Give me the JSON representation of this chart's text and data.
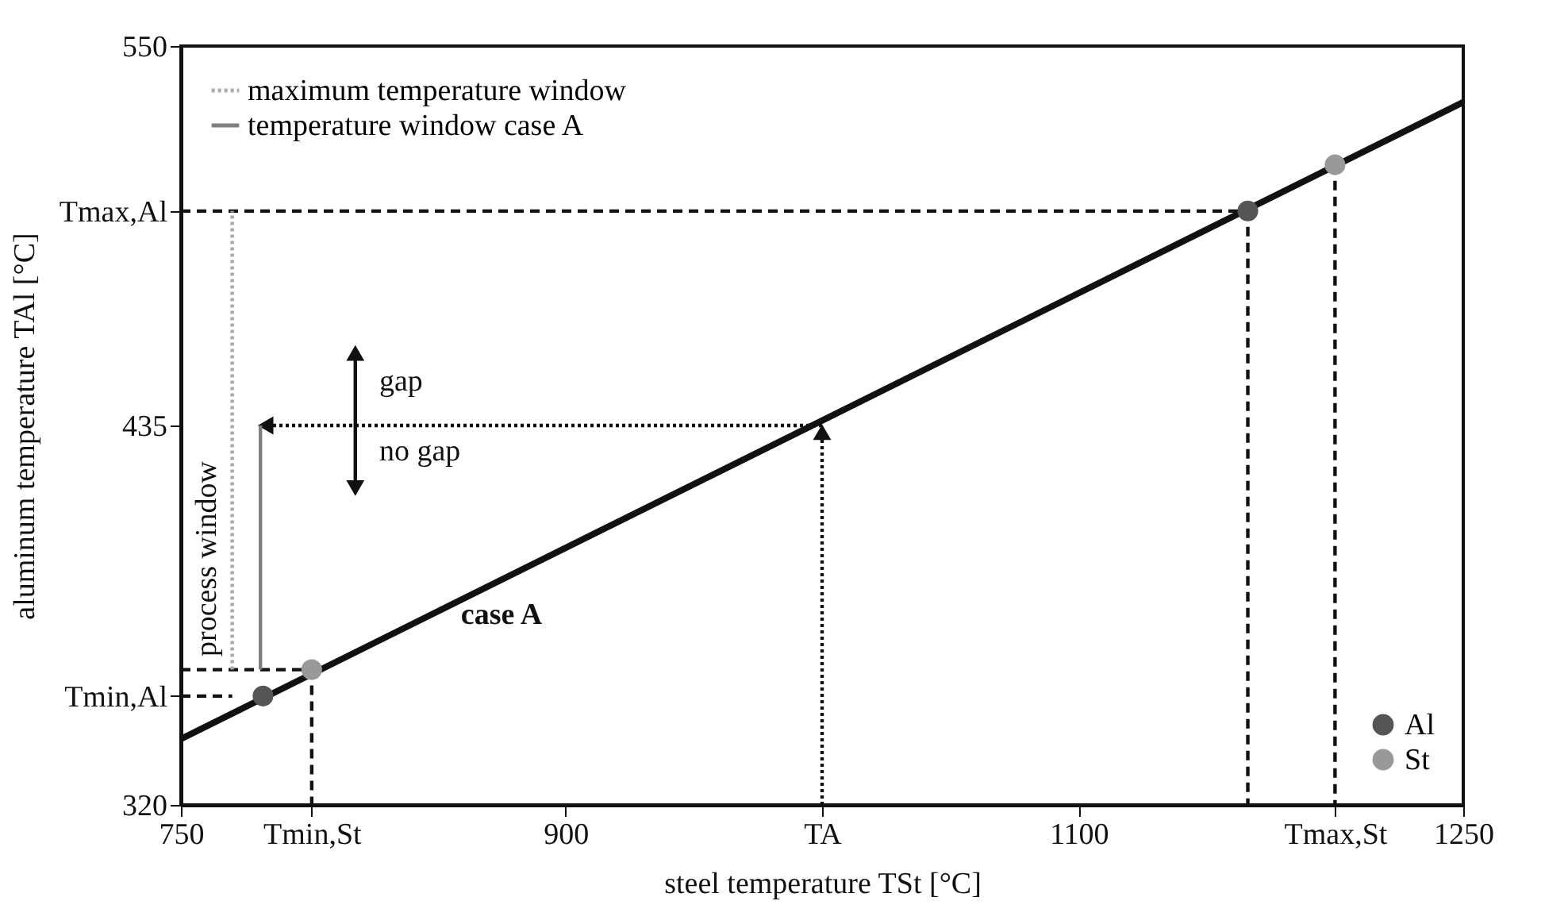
{
  "chart_data": {
    "type": "line",
    "xlabel": "steel temperature TSt [°C]",
    "ylabel": "aluminum temperature TAl [°C]",
    "xlim": [
      750,
      1250
    ],
    "xticks": [
      750,
      {
        "value": 801,
        "label": "Tmin,St"
      },
      900,
      {
        "value": 1000,
        "label": "TA"
      },
      1100,
      {
        "value": 1200,
        "label": "Tmax,St"
      },
      1250
    ],
    "ylim": [
      320,
      550
    ],
    "yticks": [
      320,
      {
        "value": 353,
        "label": "Tmin,Al"
      },
      435,
      {
        "value": 500,
        "label": "Tmax,Al"
      },
      550
    ],
    "grid": false,
    "legend": "top left",
    "series": [
      {
        "x": [
          750,
          1250
        ],
        "values": [
          340,
          533
        ],
        "color": "#111111",
        "line_style": "solid"
      },
      {
        "x": [
          750,
          770
        ],
        "values": [
          353,
          353
        ],
        "color": "#111111",
        "line_style": "dashed"
      },
      {
        "x": [
          750,
          801
        ],
        "values": [
          361,
          361
        ],
        "color": "#111111",
        "line_style": "dashed"
      },
      {
        "x": [
          801,
          801
        ],
        "values": [
          361,
          320
        ],
        "color": "#111111",
        "line_style": "dashed"
      },
      {
        "x": [
          750,
          1166
        ],
        "values": [
          500,
          500
        ],
        "color": "#111111",
        "line_style": "dashed"
      },
      {
        "x": [
          1166,
          1166
        ],
        "values": [
          500,
          320
        ],
        "color": "#111111",
        "line_style": "dashed"
      },
      {
        "x": [
          1200,
          1200
        ],
        "values": [
          514,
          320
        ],
        "color": "#111111",
        "line_style": "dashed"
      },
      {
        "name": "maximum temperature window",
        "x": [
          770,
          770
        ],
        "values": [
          361,
          500
        ],
        "color": "#aaaaaa",
        "line_style": "dotted"
      },
      {
        "name": "temperature window case A",
        "x": [
          781,
          781
        ],
        "values": [
          361,
          435
        ],
        "color": "#808080",
        "line_style": "solid"
      },
      {
        "x": [
          1000,
          783
        ],
        "values": [
          435,
          435
        ],
        "color": "#111111",
        "line_style": "dotted",
        "marker": "triangle"
      },
      {
        "x": [
          1000,
          1000
        ],
        "values": [
          320,
          433
        ],
        "color": "#111111",
        "line_style": "dotted",
        "marker": "triangle"
      },
      {
        "x": [
          818,
          818,
          818
        ],
        "values": [
          416,
          436,
          457
        ],
        "color": "#111111",
        "line_style": "solid",
        "marker": "triangle"
      },
      {
        "type": "scatter",
        "name": "Al",
        "x": [
          782,
          1166
        ],
        "values": [
          353,
          500
        ],
        "color": "#555555"
      },
      {
        "type": "scatter",
        "name": "St",
        "x": [
          801,
          1200
        ],
        "values": [
          361,
          514
        ],
        "color": "#999999"
      }
    ],
    "annotations": [
      "gap",
      "no gap",
      "case A",
      "process window"
    ]
  }
}
